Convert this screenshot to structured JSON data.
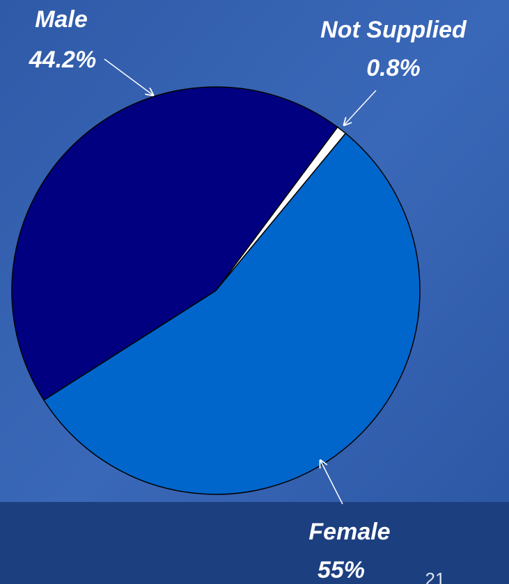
{
  "chart_data": {
    "type": "pie",
    "categories": [
      "Not Supplied",
      "Female",
      "Male"
    ],
    "values": [
      0.8,
      55,
      44.2
    ],
    "value_labels": [
      "0.8%",
      "55%",
      "44.2%"
    ],
    "colors": [
      "#ffffff",
      "#0066cc",
      "#000080"
    ]
  },
  "page_number": "21"
}
